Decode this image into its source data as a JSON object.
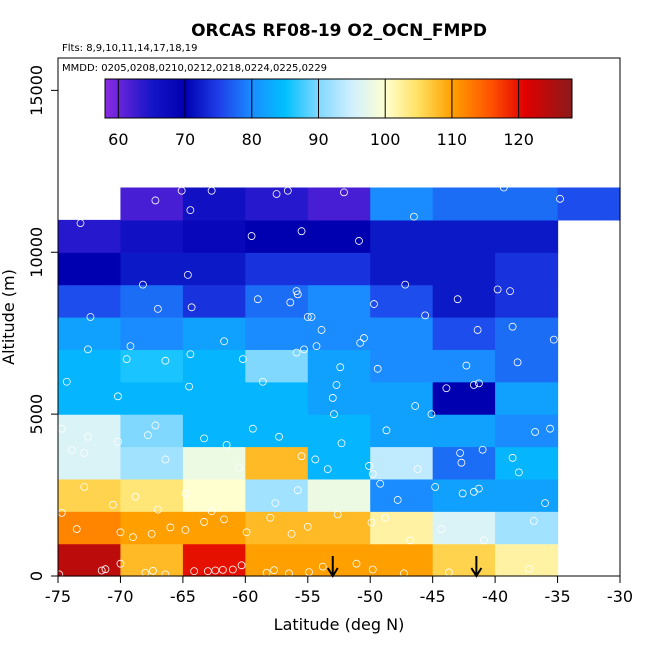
{
  "chart_data": {
    "type": "heatmap",
    "title": "ORCAS RF08-19 O2_OCN_FMPD",
    "flights_note": "Flts: 8,9,10,11,14,17,18,19",
    "dates_note": "MMDD: 0205,0208,0210,0212,0218,0224,0225,0229",
    "xlabel": "Latitude (deg N)",
    "ylabel": "Altitude (m)",
    "xlim": [
      -75,
      -30
    ],
    "ylim": [
      0,
      16000
    ],
    "x_ticks": [
      -75,
      -70,
      -65,
      -60,
      -55,
      -50,
      -45,
      -40,
      -35,
      -30
    ],
    "x_tick_labels": [
      "-75",
      "-70",
      "-65",
      "-60",
      "-55",
      "-50",
      "-45",
      "-40",
      "-35",
      "-30"
    ],
    "y_ticks": [
      0,
      5000,
      10000,
      15000
    ],
    "y_tick_labels": [
      "0",
      "5000",
      "10000",
      "15000"
    ],
    "colorbar": {
      "min": 58,
      "max": 128,
      "ticks": [
        60,
        70,
        80,
        90,
        100,
        110,
        120
      ],
      "tick_labels": [
        "60",
        "70",
        "80",
        "90",
        "100",
        "110",
        "120"
      ],
      "stops": [
        {
          "v": 58,
          "color": "#8a2be2"
        },
        {
          "v": 65,
          "color": "#1515c8"
        },
        {
          "v": 70,
          "color": "#0000b0"
        },
        {
          "v": 75,
          "color": "#1e3ee8"
        },
        {
          "v": 80,
          "color": "#1a8cff"
        },
        {
          "v": 85,
          "color": "#00c0ff"
        },
        {
          "v": 90,
          "color": "#80d8ff"
        },
        {
          "v": 95,
          "color": "#d0f0ff"
        },
        {
          "v": 100,
          "color": "#ffffd0"
        },
        {
          "v": 105,
          "color": "#ffe060"
        },
        {
          "v": 110,
          "color": "#ffa000"
        },
        {
          "v": 116,
          "color": "#ff5000"
        },
        {
          "v": 121,
          "color": "#e00000"
        },
        {
          "v": 128,
          "color": "#8b1a1a"
        }
      ]
    },
    "x_bins": [
      -75,
      -70,
      -65,
      -60,
      -55,
      -50,
      -45,
      -40,
      -35,
      -30
    ],
    "y_bins": [
      0,
      1000,
      2000,
      3000,
      4000,
      5000,
      6000,
      7000,
      8000,
      9000,
      10000,
      11000,
      12000
    ],
    "grid_values": [
      [
        124,
        108,
        120,
        110,
        110,
        110,
        106,
        102,
        null
      ],
      [
        112,
        110,
        110,
        108,
        108,
        102,
        96,
        92,
        null
      ],
      [
        106,
        104,
        100,
        92,
        98,
        80,
        82,
        82,
        null
      ],
      [
        96,
        92,
        98,
        108,
        84,
        94,
        78,
        84,
        null
      ],
      [
        96,
        90,
        84,
        84,
        84,
        82,
        82,
        80,
        null
      ],
      [
        84,
        84,
        84,
        84,
        82,
        82,
        70,
        82,
        null
      ],
      [
        84,
        86,
        84,
        90,
        82,
        80,
        80,
        78,
        null
      ],
      [
        82,
        80,
        82,
        80,
        80,
        80,
        76,
        78,
        null
      ],
      [
        76,
        78,
        74,
        78,
        80,
        76,
        72,
        74,
        null
      ],
      [
        70,
        72,
        72,
        74,
        74,
        72,
        72,
        74,
        null
      ],
      [
        64,
        66,
        68,
        70,
        70,
        72,
        72,
        72,
        null
      ],
      [
        null,
        62,
        66,
        64,
        62,
        80,
        78,
        78,
        76
      ]
    ],
    "sample_points": [
      [
        -74.9,
        50
      ],
      [
        -71.5,
        170
      ],
      [
        -71.2,
        210
      ],
      [
        -70.0,
        380
      ],
      [
        -68.0,
        100
      ],
      [
        -67.4,
        160
      ],
      [
        -66.4,
        50
      ],
      [
        -64.1,
        150
      ],
      [
        -63.0,
        150
      ],
      [
        -62.4,
        170
      ],
      [
        -61.8,
        190
      ],
      [
        -61.0,
        200
      ],
      [
        -60.3,
        330
      ],
      [
        -58.3,
        100
      ],
      [
        -57.7,
        180
      ],
      [
        -56.5,
        80
      ],
      [
        -54.9,
        120
      ],
      [
        -53.8,
        290
      ],
      [
        -51.1,
        380
      ],
      [
        -49.8,
        200
      ],
      [
        -47.3,
        80
      ],
      [
        -43.7,
        110
      ],
      [
        -37.3,
        220
      ],
      [
        -74.7,
        1950
      ],
      [
        -73.5,
        1450
      ],
      [
        -70.0,
        1350
      ],
      [
        -69.0,
        1200
      ],
      [
        -67.5,
        1300
      ],
      [
        -66.0,
        1500
      ],
      [
        -64.8,
        1420
      ],
      [
        -63.3,
        1670
      ],
      [
        -61.7,
        1750
      ],
      [
        -59.9,
        1350
      ],
      [
        -58.0,
        1800
      ],
      [
        -56.3,
        1300
      ],
      [
        -55.0,
        1520
      ],
      [
        -52.6,
        1900
      ],
      [
        -49.9,
        1650
      ],
      [
        -48.8,
        1800
      ],
      [
        -46.8,
        1100
      ],
      [
        -44.3,
        1450
      ],
      [
        -40.9,
        1100
      ],
      [
        -36.9,
        1700
      ],
      [
        -72.9,
        2750
      ],
      [
        -70.6,
        2200
      ],
      [
        -68.8,
        2450
      ],
      [
        -67.0,
        2050
      ],
      [
        -64.8,
        2550
      ],
      [
        -62.7,
        2000
      ],
      [
        -60.5,
        3350
      ],
      [
        -57.6,
        2250
      ],
      [
        -55.8,
        2650
      ],
      [
        -53.4,
        3300
      ],
      [
        -50.1,
        3400
      ],
      [
        -49.2,
        2850
      ],
      [
        -47.8,
        2350
      ],
      [
        -44.8,
        2750
      ],
      [
        -42.6,
        2550
      ],
      [
        -41.7,
        2600
      ],
      [
        -41.3,
        2700
      ],
      [
        -38.1,
        3200
      ],
      [
        -36.0,
        2250
      ],
      [
        -74.7,
        4550
      ],
      [
        -73.9,
        3900
      ],
      [
        -72.9,
        3800
      ],
      [
        -72.6,
        4300
      ],
      [
        -70.2,
        4150
      ],
      [
        -67.8,
        4350
      ],
      [
        -67.2,
        4650
      ],
      [
        -66.4,
        3600
      ],
      [
        -63.3,
        4250
      ],
      [
        -61.5,
        4050
      ],
      [
        -59.4,
        4550
      ],
      [
        -57.3,
        4300
      ],
      [
        -55.5,
        3700
      ],
      [
        -54.4,
        3600
      ],
      [
        -52.3,
        4100
      ],
      [
        -49.8,
        3150
      ],
      [
        -48.7,
        4500
      ],
      [
        -46.2,
        3300
      ],
      [
        -42.8,
        3800
      ],
      [
        -42.7,
        3500
      ],
      [
        -41.0,
        3900
      ],
      [
        -38.6,
        3650
      ],
      [
        -36.8,
        4450
      ],
      [
        -35.6,
        4550
      ],
      [
        -74.3,
        6000
      ],
      [
        -72.6,
        7000
      ],
      [
        -70.2,
        5550
      ],
      [
        -69.5,
        6700
      ],
      [
        -69.2,
        7100
      ],
      [
        -66.4,
        6650
      ],
      [
        -64.5,
        5850
      ],
      [
        -64.4,
        6850
      ],
      [
        -61.7,
        7250
      ],
      [
        -60.2,
        6700
      ],
      [
        -58.6,
        6000
      ],
      [
        -55.9,
        6900
      ],
      [
        -55.3,
        7000
      ],
      [
        -54.3,
        7100
      ],
      [
        -52.7,
        5900
      ],
      [
        -53.0,
        5500
      ],
      [
        -52.9,
        5000
      ],
      [
        -52.4,
        6450
      ],
      [
        -50.8,
        7200
      ],
      [
        -50.5,
        7350
      ],
      [
        -49.4,
        6400
      ],
      [
        -46.4,
        5250
      ],
      [
        -45.1,
        5000
      ],
      [
        -43.9,
        5800
      ],
      [
        -42.3,
        6500
      ],
      [
        -41.7,
        5900
      ],
      [
        -41.3,
        5950
      ],
      [
        -38.2,
        6600
      ],
      [
        -35.3,
        7300
      ],
      [
        -72.4,
        8000
      ],
      [
        -68.2,
        9000
      ],
      [
        -67.0,
        8250
      ],
      [
        -64.6,
        9300
      ],
      [
        -64.3,
        8300
      ],
      [
        -59.0,
        8550
      ],
      [
        -56.4,
        8450
      ],
      [
        -55.9,
        8800
      ],
      [
        -55.8,
        8700
      ],
      [
        -55.0,
        8000
      ],
      [
        -54.7,
        8000
      ],
      [
        -53.9,
        7600
      ],
      [
        -49.7,
        8400
      ],
      [
        -45.6,
        8050
      ],
      [
        -43.0,
        8550
      ],
      [
        -41.4,
        7600
      ],
      [
        -39.8,
        8850
      ],
      [
        -38.8,
        8800
      ],
      [
        -38.6,
        7700
      ],
      [
        -47.2,
        9000
      ],
      [
        -73.2,
        10900
      ],
      [
        -64.4,
        11300
      ],
      [
        -59.5,
        10500
      ],
      [
        -55.5,
        10650
      ],
      [
        -50.9,
        10350
      ],
      [
        -46.5,
        11100
      ],
      [
        -67.2,
        11600
      ],
      [
        -65.1,
        11900
      ],
      [
        -62.7,
        11900
      ],
      [
        -57.5,
        11800
      ],
      [
        -56.6,
        11900
      ],
      [
        -52.1,
        11850
      ],
      [
        -39.3,
        12000
      ],
      [
        -34.8,
        11650
      ]
    ],
    "arrow_markers": [
      -53,
      -41.5
    ]
  }
}
